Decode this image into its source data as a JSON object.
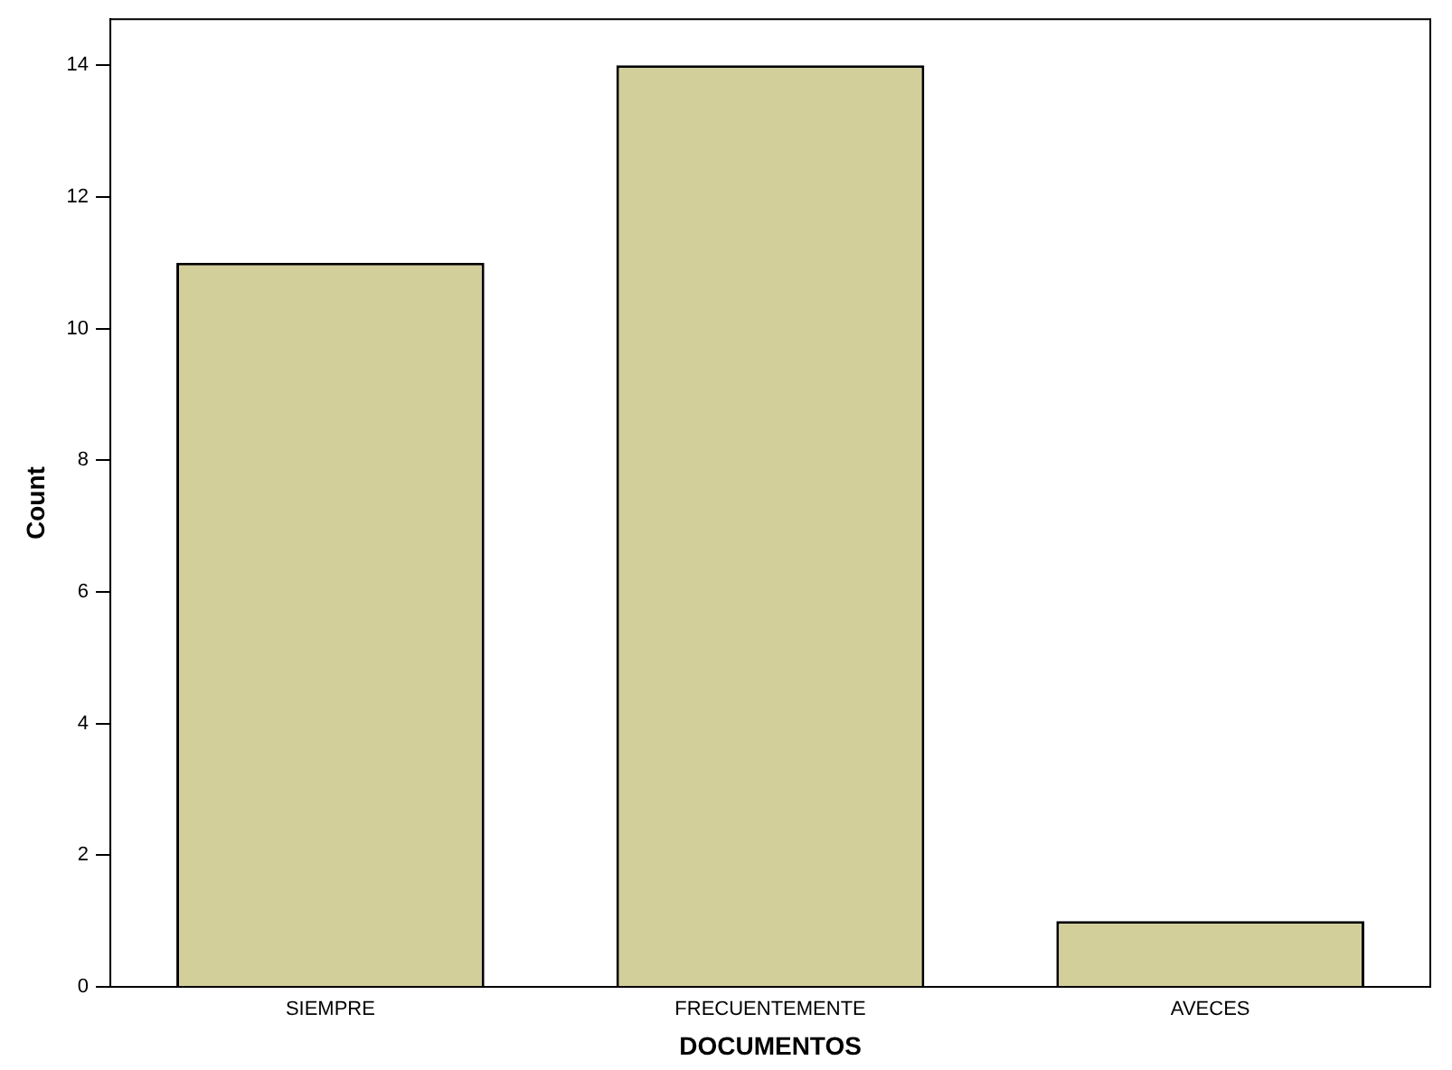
{
  "chart_data": {
    "type": "bar",
    "xlabel": "DOCUMENTOS",
    "ylabel": "Count",
    "categories": [
      "SIEMPRE",
      "FRECUENTEMENTE",
      "AVECES"
    ],
    "values": [
      11,
      14,
      1
    ],
    "color": "#d3cf9a",
    "ylim": [
      0,
      14.7
    ],
    "yticks": [
      0,
      2,
      4,
      6,
      8,
      10,
      12,
      14
    ],
    "grid": false,
    "legend": false
  }
}
